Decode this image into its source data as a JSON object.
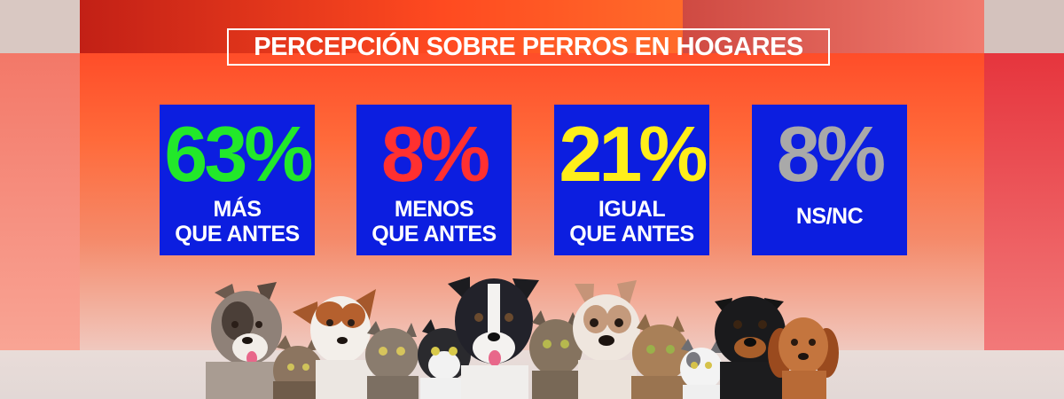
{
  "title": "PERCEPCIÓN SOBRE PERROS EN HOGARES",
  "colors": {
    "box_background": "#0c1ee0",
    "title_border": "#ffffff"
  },
  "stats": [
    {
      "value": "63%",
      "label": "MÁS\nQUE ANTES",
      "color": "#22e82a"
    },
    {
      "value": "8%",
      "label": "MENOS\nQUE ANTES",
      "color": "#ff3030"
    },
    {
      "value": "21%",
      "label": "IGUAL\nQUE ANTES",
      "color": "#ffee1a"
    },
    {
      "value": "8%",
      "label": "NS/NC",
      "color": "#a9a9a9"
    }
  ],
  "image": {
    "subject": "row-of-dogs-and-cats",
    "animals": [
      "dog",
      "cat",
      "dog",
      "cat",
      "cat",
      "dog",
      "cat",
      "dog",
      "cat",
      "cat",
      "dog",
      "dog"
    ]
  }
}
